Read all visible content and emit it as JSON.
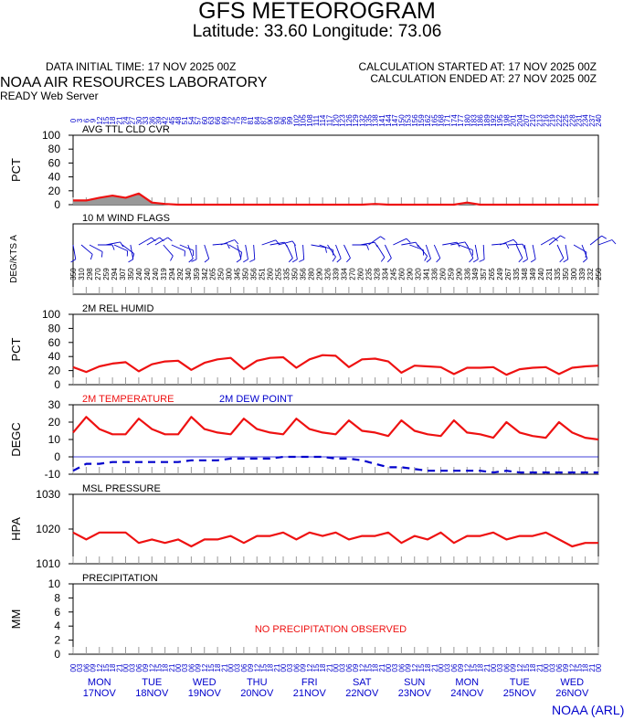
{
  "header": {
    "title": "GFS METEOROGRAM",
    "subtitle": "Latitude: 33.60 Longitude:  73.06",
    "data_initial": "DATA INITIAL TIME: 17 NOV 2025 00Z",
    "calc_started": "CALCULATION STARTED AT: 17 NOV 2025 00Z",
    "calc_ended": "CALCULATION ENDED AT: 27 NOV 2025 00Z",
    "org": "NOAA AIR RESOURCES LABORATORY",
    "server": "READY Web Server",
    "footer": "NOAA (ARL)"
  },
  "colors": {
    "frame": "#000000",
    "blue": "#0000cc",
    "red": "#ee1111",
    "grey": "#999999"
  },
  "chart_data": [
    {
      "type": "area",
      "title": "AVG TTL CLD CVR",
      "ylabel": "PCT",
      "ylim": [
        0,
        100
      ],
      "yticks": [
        "100",
        "80",
        "60",
        "40",
        "20",
        "0"
      ],
      "x_hours": [
        0,
        6,
        12,
        18,
        24,
        30,
        36,
        42,
        48,
        54,
        60,
        66,
        72,
        78,
        84,
        90,
        96,
        102,
        108,
        114,
        120,
        126,
        132,
        138,
        144,
        150,
        156,
        162,
        168,
        174,
        180,
        186,
        192,
        198,
        204,
        210,
        216,
        222,
        228,
        234,
        240
      ],
      "values": [
        6,
        6,
        10,
        13,
        10,
        16,
        3,
        1,
        0,
        0,
        0,
        0,
        0,
        0,
        0,
        0,
        0,
        0,
        0,
        0,
        0,
        0,
        0,
        1,
        0,
        0,
        0,
        0,
        0,
        0,
        3,
        0,
        0,
        0,
        0,
        0,
        0,
        0,
        0,
        0,
        0
      ]
    },
    {
      "type": "wind_barbs",
      "title": "10 M  WIND FLAGS",
      "ylabel": "DEG/KTS  A",
      "directions": [
        "350",
        "310",
        "298",
        "270",
        "259",
        "294",
        "307",
        "350",
        "240",
        "240",
        "240",
        "319",
        "294",
        "292",
        "340",
        "359",
        "342",
        "265",
        "250",
        "300",
        "345",
        "350",
        "356",
        "251",
        "260",
        "255",
        "335",
        "350",
        "356",
        "280",
        "290",
        "326",
        "339",
        "334",
        "270",
        "260",
        "235",
        "328",
        "334",
        "245",
        "260",
        "290",
        "320",
        "341",
        "336",
        "260",
        "259",
        "290",
        "336",
        "349",
        "357",
        "265",
        "249",
        "267",
        "335",
        "348",
        "349",
        "240",
        "231",
        "335",
        "350",
        "300",
        "339",
        "232",
        "250"
      ]
    },
    {
      "type": "line",
      "title": "2M REL HUMID",
      "ylabel": "PCT",
      "ylim": [
        0,
        100
      ],
      "yticks": [
        "100",
        "80",
        "60",
        "40",
        "20",
        "0"
      ],
      "x_hours": [
        0,
        6,
        12,
        18,
        24,
        30,
        36,
        42,
        48,
        54,
        60,
        66,
        72,
        78,
        84,
        90,
        96,
        102,
        108,
        114,
        120,
        126,
        132,
        138,
        144,
        150,
        156,
        162,
        168,
        174,
        180,
        186,
        192,
        198,
        204,
        210,
        216,
        222,
        228,
        234,
        240
      ],
      "values": [
        25,
        18,
        26,
        30,
        32,
        19,
        29,
        33,
        34,
        21,
        31,
        36,
        38,
        22,
        34,
        38,
        39,
        24,
        36,
        42,
        41,
        25,
        36,
        37,
        33,
        17,
        27,
        26,
        25,
        15,
        24,
        24,
        25,
        14,
        22,
        24,
        25,
        15,
        24,
        26,
        27
      ]
    },
    {
      "type": "line",
      "title": "2M TEMPERATURE",
      "legend2": "2M   DEW POINT",
      "ylabel": "DEGC",
      "ylim": [
        -10,
        30
      ],
      "yticks": [
        "30",
        "20",
        "10",
        "0",
        "-10"
      ],
      "x_hours": [
        0,
        6,
        12,
        18,
        24,
        30,
        36,
        42,
        48,
        54,
        60,
        66,
        72,
        78,
        84,
        90,
        96,
        102,
        108,
        114,
        120,
        126,
        132,
        138,
        144,
        150,
        156,
        162,
        168,
        174,
        180,
        186,
        192,
        198,
        204,
        210,
        216,
        222,
        228,
        234,
        240
      ],
      "temperature": [
        14,
        23,
        16,
        13,
        13,
        22,
        16,
        13,
        13,
        23,
        16,
        14,
        13,
        22,
        16,
        14,
        13,
        22,
        16,
        14,
        13,
        21,
        15,
        14,
        12,
        21,
        15,
        13,
        12,
        21,
        14,
        13,
        11,
        20,
        14,
        12,
        11,
        20,
        14,
        11,
        10
      ],
      "dew_point": [
        -8,
        -4,
        -4,
        -3,
        -3,
        -3,
        -3,
        -3,
        -3,
        -2,
        -2,
        -2,
        -1,
        -1,
        -1,
        -1,
        0,
        0,
        0,
        0,
        -1,
        -1,
        -2,
        -4,
        -6,
        -6,
        -7,
        -8,
        -8,
        -8,
        -8,
        -8,
        -9,
        -8,
        -9,
        -9,
        -9,
        -9,
        -9,
        -9,
        -9
      ],
      "zero_line": 0
    },
    {
      "type": "line",
      "title": "MSL PRESSURE",
      "ylabel": "HPA",
      "ylim": [
        1010,
        1030
      ],
      "yticks": [
        "1030",
        "1020",
        "1010"
      ],
      "x_hours": [
        0,
        6,
        12,
        18,
        24,
        30,
        36,
        42,
        48,
        54,
        60,
        66,
        72,
        78,
        84,
        90,
        96,
        102,
        108,
        114,
        120,
        126,
        132,
        138,
        144,
        150,
        156,
        162,
        168,
        174,
        180,
        186,
        192,
        198,
        204,
        210,
        216,
        222,
        228,
        234,
        240
      ],
      "values": [
        1019,
        1017,
        1019,
        1019,
        1019,
        1016,
        1017,
        1016,
        1017,
        1015,
        1017,
        1017,
        1018,
        1016,
        1018,
        1018,
        1019,
        1017,
        1019,
        1018,
        1019,
        1017,
        1018,
        1018,
        1019,
        1016,
        1018,
        1017,
        1019,
        1016,
        1018,
        1018,
        1019,
        1017,
        1018,
        1018,
        1019,
        1017,
        1015,
        1016,
        1016
      ]
    },
    {
      "type": "bar",
      "title": "PRECIPITATION",
      "ylabel": "MM",
      "ylim": [
        0,
        10
      ],
      "yticks": [
        "10",
        "8",
        "6",
        "4",
        "2",
        "0"
      ],
      "annotation": "NO PRECIPITATION OBSERVED",
      "values": []
    }
  ],
  "x_axis": {
    "hour_labels": [
      "00",
      "03",
      "06",
      "09",
      "12",
      "15",
      "18",
      "21"
    ],
    "days": [
      {
        "dow": "MON",
        "date": "17NOV"
      },
      {
        "dow": "TUE",
        "date": "18NOV"
      },
      {
        "dow": "WED",
        "date": "19NOV"
      },
      {
        "dow": "THU",
        "date": "20NOV"
      },
      {
        "dow": "FRI",
        "date": "21NOV"
      },
      {
        "dow": "SAT",
        "date": "22NOV"
      },
      {
        "dow": "SUN",
        "date": "23NOV"
      },
      {
        "dow": "MON",
        "date": "24NOV"
      },
      {
        "dow": "TUE",
        "date": "25NOV"
      },
      {
        "dow": "WED",
        "date": "26NOV"
      }
    ]
  }
}
